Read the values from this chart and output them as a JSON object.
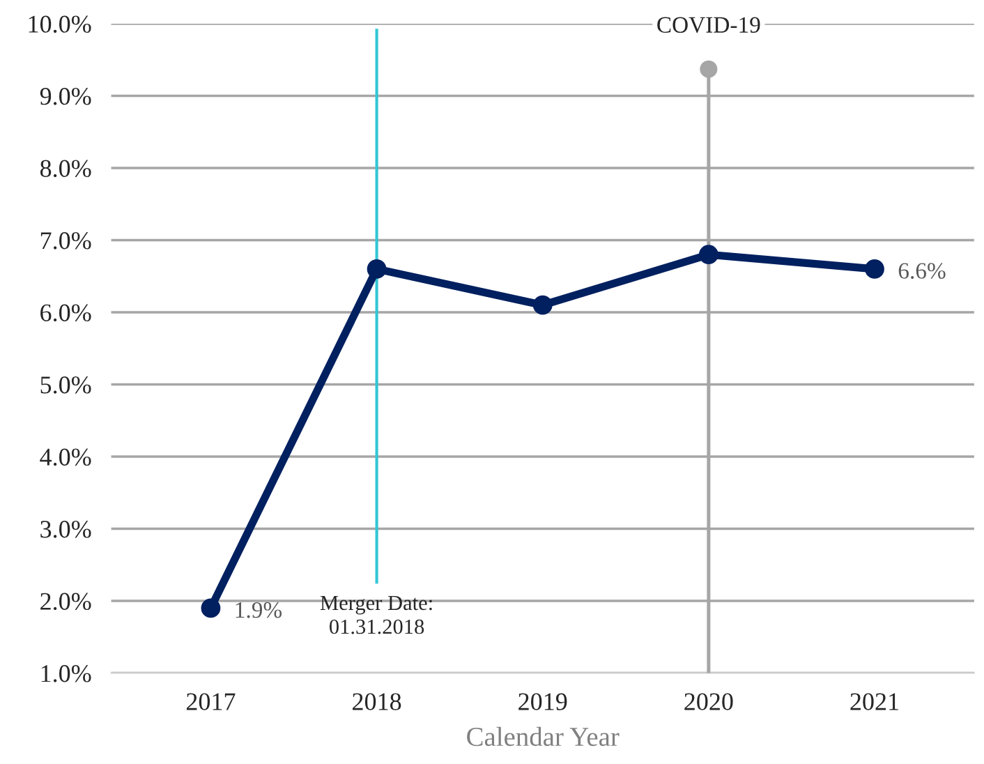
{
  "chart_data": {
    "type": "line",
    "xlabel": "Calendar Year",
    "categories": [
      "2017",
      "2018",
      "2019",
      "2020",
      "2021"
    ],
    "series": [
      {
        "color": "#002060",
        "values": [
          1.9,
          6.6,
          6.1,
          6.8,
          6.6
        ],
        "value_labels": [
          "1.9%",
          null,
          null,
          null,
          "6.6%"
        ]
      }
    ],
    "marker": "circle",
    "ylim": [
      1,
      10
    ],
    "yticks": [
      {
        "value": 1,
        "label": "1.0%"
      },
      {
        "value": 2,
        "label": "2.0%"
      },
      {
        "value": 3,
        "label": "3.0%"
      },
      {
        "value": 4,
        "label": "4.0%"
      },
      {
        "value": 5,
        "label": "5.0%"
      },
      {
        "value": 6,
        "label": "6.0%"
      },
      {
        "value": 7,
        "label": "7.0%"
      },
      {
        "value": 8,
        "label": "8.0%"
      },
      {
        "value": 9,
        "label": "9.0%"
      },
      {
        "value": 10,
        "label": "10.0%"
      }
    ],
    "grid": "y",
    "ref_lines": [
      {
        "axis": "x",
        "value": "2018",
        "label": "Merger Date:\n01.31.2018",
        "color": "#33c6d4"
      },
      {
        "axis": "x",
        "value": "2020",
        "label": "COVID-19",
        "color": "#a6a6a6"
      }
    ]
  }
}
